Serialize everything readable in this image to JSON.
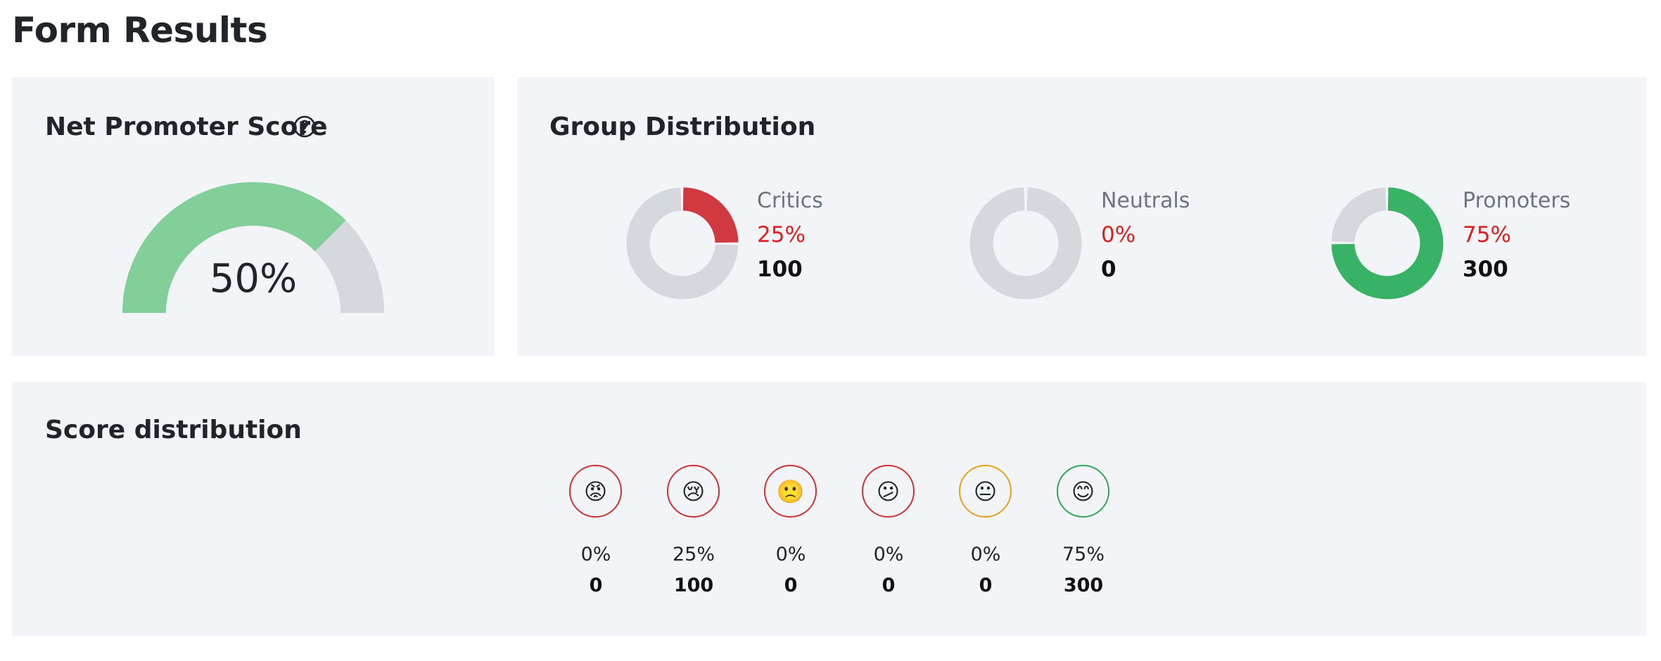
{
  "page": {
    "title": "Form Results"
  },
  "nps": {
    "title": "Net Promoter Score",
    "help_icon": "help-circle-icon",
    "value_label": "50%",
    "fill_fraction": 0.75,
    "colors": {
      "fill": "#82cf99",
      "track": "#d6d8de"
    }
  },
  "group_distribution": {
    "title": "Group Distribution",
    "groups": [
      {
        "name": "Critics",
        "percent": "25%",
        "count": "100",
        "fraction": 0.25,
        "color": "#d0393f"
      },
      {
        "name": "Neutrals",
        "percent": "0%",
        "count": "0",
        "fraction": 0.0,
        "color": "#d6d8de"
      },
      {
        "name": "Promoters",
        "percent": "75%",
        "count": "300",
        "fraction": 0.75,
        "color": "#38b265"
      }
    ],
    "colors": {
      "track": "#d6d8de",
      "percent_text": "#e11d1d"
    }
  },
  "score_distribution": {
    "title": "Score distribution",
    "items": [
      {
        "emoji": "😡",
        "icon": "angry-face-icon",
        "percent": "0%",
        "count": "0",
        "border": "#cc3333"
      },
      {
        "emoji": "😢",
        "icon": "crying-face-icon",
        "percent": "25%",
        "count": "100",
        "border": "#cc3333"
      },
      {
        "emoji": "🙁",
        "icon": "frowning-face-icon",
        "percent": "0%",
        "count": "0",
        "border": "#cc3333"
      },
      {
        "emoji": "😕",
        "icon": "confused-face-icon",
        "percent": "0%",
        "count": "0",
        "border": "#cc3333"
      },
      {
        "emoji": "😐",
        "icon": "neutral-face-icon",
        "percent": "0%",
        "count": "0",
        "border": "#e6a117"
      },
      {
        "emoji": "😊",
        "icon": "smiling-face-icon",
        "percent": "75%",
        "count": "300",
        "border": "#2fa85a"
      }
    ]
  }
}
